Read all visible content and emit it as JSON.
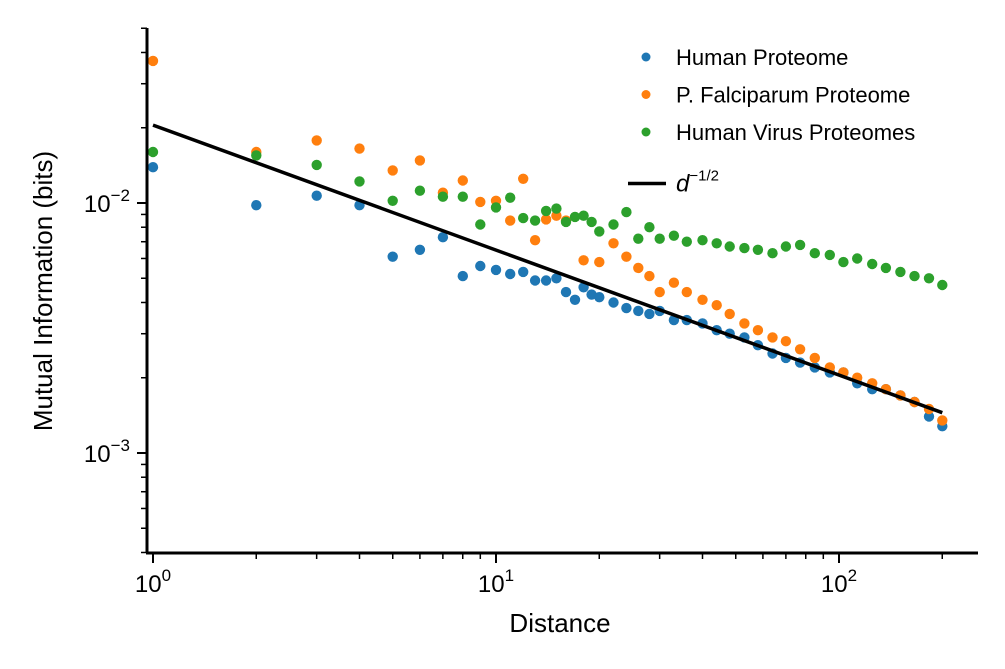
{
  "chart_data": {
    "type": "scatter",
    "title": "",
    "xlabel": "Distance",
    "ylabel": "Mutual Information (bits)",
    "xscale": "log",
    "yscale": "log",
    "xlim": [
      0.92,
      250
    ],
    "ylim": [
      0.0004,
      0.05
    ],
    "x_ticks": [
      {
        "value": 1,
        "base": "10",
        "exp": "0"
      },
      {
        "value": 10,
        "base": "10",
        "exp": "1"
      },
      {
        "value": 100,
        "base": "10",
        "exp": "2"
      }
    ],
    "y_ticks": [
      {
        "value": 0.001,
        "base": "10",
        "exp": "−3"
      },
      {
        "value": 0.01,
        "base": "10",
        "exp": "−2"
      }
    ],
    "grid": false,
    "legend_position": "top-right",
    "series": [
      {
        "name": "Human Proteome",
        "color": "#1f77b4",
        "x": [
          1,
          2,
          3,
          4,
          5,
          6,
          7,
          8,
          9,
          10,
          11,
          12,
          13,
          14,
          15,
          16,
          17,
          18,
          19,
          20,
          22,
          24,
          26,
          28,
          30,
          33,
          36,
          40,
          44,
          48,
          53,
          58,
          64,
          70,
          77,
          85,
          94,
          103,
          113,
          125,
          137,
          151,
          166,
          183,
          200
        ],
        "y": [
          0.0139,
          0.0098,
          0.0107,
          0.0098,
          0.0061,
          0.0065,
          0.0073,
          0.0051,
          0.0056,
          0.0054,
          0.0052,
          0.0053,
          0.0049,
          0.0049,
          0.005,
          0.0044,
          0.0041,
          0.0046,
          0.0043,
          0.0042,
          0.004,
          0.0038,
          0.0037,
          0.0036,
          0.0037,
          0.0034,
          0.0034,
          0.0033,
          0.0031,
          0.003,
          0.0029,
          0.0027,
          0.0025,
          0.0024,
          0.0023,
          0.0022,
          0.0021,
          0.0021,
          0.0019,
          0.0018,
          0.0018,
          0.0017,
          0.0016,
          0.0014,
          0.00128
        ]
      },
      {
        "name": "P. Falciparum Proteome",
        "color": "#ff7f0e",
        "x": [
          1,
          2,
          3,
          4,
          5,
          6,
          7,
          8,
          9,
          10,
          11,
          12,
          13,
          14,
          15,
          16,
          18,
          20,
          22,
          24,
          26,
          28,
          30,
          33,
          36,
          40,
          44,
          48,
          53,
          58,
          64,
          70,
          77,
          85,
          94,
          103,
          113,
          125,
          137,
          151,
          166,
          183,
          200
        ],
        "y": [
          0.037,
          0.016,
          0.0178,
          0.0165,
          0.0135,
          0.0148,
          0.011,
          0.0123,
          0.0101,
          0.0102,
          0.0085,
          0.0125,
          0.0071,
          0.0086,
          0.0089,
          0.0085,
          0.0059,
          0.0058,
          0.0069,
          0.0061,
          0.0055,
          0.0051,
          0.0044,
          0.0048,
          0.0044,
          0.0041,
          0.0039,
          0.0036,
          0.0033,
          0.0031,
          0.0029,
          0.0028,
          0.0026,
          0.0024,
          0.0022,
          0.0021,
          0.002,
          0.0019,
          0.0018,
          0.0017,
          0.0016,
          0.0015,
          0.00135
        ]
      },
      {
        "name": "Human Virus Proteomes",
        "color": "#2ca02c",
        "x": [
          1,
          2,
          3,
          4,
          5,
          6,
          7,
          8,
          9,
          10,
          11,
          12,
          13,
          14,
          15,
          16,
          17,
          18,
          19,
          20,
          22,
          24,
          26,
          28,
          30,
          33,
          36,
          40,
          44,
          48,
          53,
          58,
          64,
          70,
          77,
          85,
          94,
          103,
          113,
          125,
          137,
          151,
          166,
          183,
          200
        ],
        "y": [
          0.016,
          0.0155,
          0.0142,
          0.0122,
          0.0102,
          0.0112,
          0.0106,
          0.0106,
          0.0082,
          0.0096,
          0.0105,
          0.0087,
          0.0085,
          0.0093,
          0.0095,
          0.0084,
          0.0088,
          0.0089,
          0.0084,
          0.0077,
          0.0082,
          0.0092,
          0.0072,
          0.008,
          0.0072,
          0.0074,
          0.007,
          0.0071,
          0.0069,
          0.0067,
          0.0066,
          0.0065,
          0.0063,
          0.0067,
          0.0068,
          0.0063,
          0.0062,
          0.0058,
          0.006,
          0.0057,
          0.0055,
          0.0053,
          0.0051,
          0.005,
          0.0047
        ]
      }
    ],
    "reference_line": {
      "label_base": "d",
      "label_exp": "−1/2",
      "color": "#000000",
      "formula": "0.0205 * d^(-1/2)",
      "x_range": [
        1,
        200
      ]
    }
  }
}
